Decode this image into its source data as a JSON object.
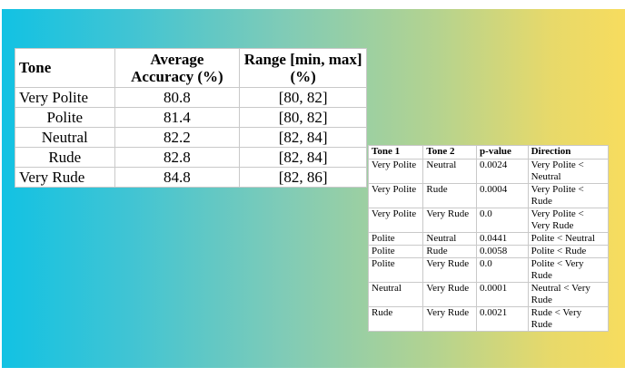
{
  "table1": {
    "headers": [
      "Tone",
      "Average Accuracy (%)",
      "Range [min, max] (%)"
    ],
    "rows": [
      [
        "Very Polite",
        "80.8",
        "[80, 82]"
      ],
      [
        "Polite",
        "81.4",
        "[80, 82]"
      ],
      [
        "Neutral",
        "82.2",
        "[82, 84]"
      ],
      [
        "Rude",
        "82.8",
        "[82, 84]"
      ],
      [
        "Very Rude",
        "84.8",
        "[82, 86]"
      ]
    ]
  },
  "table2": {
    "headers": [
      "Tone 1",
      "Tone 2",
      "p-value",
      "Direction"
    ],
    "rows": [
      [
        "Very Polite",
        "Neutral",
        "0.0024",
        "Very Polite < Neutral"
      ],
      [
        "Very Polite",
        "Rude",
        "0.0004",
        "Very Polite < Rude"
      ],
      [
        "Very Polite",
        "Very Rude",
        "0.0",
        "Very Polite < Very Rude"
      ],
      [
        "Polite",
        "Neutral",
        "0.0441",
        "Polite < Neutral"
      ],
      [
        "Polite",
        "Rude",
        "0.0058",
        "Polite < Rude"
      ],
      [
        "Polite",
        "Very Rude",
        "0.0",
        "Polite < Very Rude"
      ],
      [
        "Neutral",
        "Very Rude",
        "0.0001",
        "Neutral < Very Rude"
      ],
      [
        "Rude",
        "Very Rude",
        "0.0021",
        "Rude < Very Rude"
      ]
    ]
  }
}
